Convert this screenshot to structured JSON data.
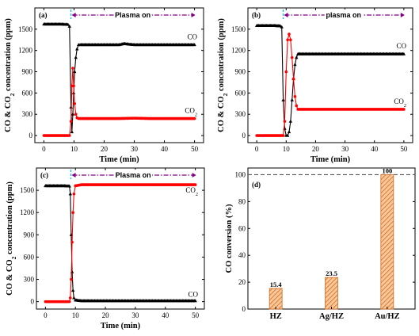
{
  "colors": {
    "co": "#000000",
    "co2": "#ff0000",
    "plasma_arrow": "#800080",
    "marker_line": "#00bfff",
    "bar_fill": "#f4a460",
    "bar_hatch": "#d2691e",
    "ref_line": "#555555"
  },
  "chart_data": [
    {
      "type": "line",
      "panel_label": "(a)",
      "plasma_text": "Plasma on",
      "xlabel": "Time (min)",
      "ylabel": "CO & CO2 concentration (ppm)",
      "ylabel_parts": {
        "main": "CO & CO",
        "sub": "2",
        "rest": " concentration (ppm)"
      },
      "xlim": [
        -3,
        53
      ],
      "ylim": [
        -100,
        1800
      ],
      "xticks": [
        "0",
        "10",
        "20",
        "30",
        "40",
        "50"
      ],
      "yticks": [
        "0",
        "300",
        "600",
        "900",
        "1200",
        "1500"
      ],
      "plasma_on_time": 9,
      "series": [
        {
          "name": "CO",
          "color": "#000000",
          "marker": "triangle",
          "points": [
            [
              0,
              1570
            ],
            [
              3,
              1570
            ],
            [
              6,
              1570
            ],
            [
              8,
              1565
            ],
            [
              8.5,
              1540
            ],
            [
              9,
              400
            ],
            [
              9.3,
              50
            ],
            [
              9.6,
              300
            ],
            [
              9.9,
              600
            ],
            [
              10.2,
              900
            ],
            [
              10.6,
              1100
            ],
            [
              11,
              1220
            ],
            [
              11.5,
              1280
            ],
            [
              12,
              1280
            ],
            [
              15,
              1280
            ],
            [
              20,
              1280
            ],
            [
              25,
              1280
            ],
            [
              26.5,
              1295
            ],
            [
              30,
              1280
            ],
            [
              35,
              1280
            ],
            [
              40,
              1280
            ],
            [
              45,
              1280
            ],
            [
              50,
              1280
            ]
          ]
        },
        {
          "name": "CO2",
          "label_main": "CO",
          "label_sub": "2",
          "color": "#ff0000",
          "marker": "circle",
          "points": [
            [
              0,
              0
            ],
            [
              3,
              0
            ],
            [
              6,
              0
            ],
            [
              8,
              0
            ],
            [
              8.5,
              0
            ],
            [
              9,
              200
            ],
            [
              9.3,
              700
            ],
            [
              9.6,
              950
            ],
            [
              9.9,
              700
            ],
            [
              10.2,
              450
            ],
            [
              10.6,
              300
            ],
            [
              11,
              250
            ],
            [
              11.5,
              240
            ],
            [
              12,
              240
            ],
            [
              15,
              240
            ],
            [
              20,
              240
            ],
            [
              25,
              240
            ],
            [
              30,
              245
            ],
            [
              35,
              240
            ],
            [
              40,
              240
            ],
            [
              45,
              240
            ],
            [
              50,
              240
            ]
          ]
        }
      ]
    },
    {
      "type": "line",
      "panel_label": "(b)",
      "plasma_text": "plasma on",
      "xlabel": "Time (min)",
      "ylabel": "CO & CO2 concentration (ppm)",
      "ylabel_parts": {
        "main": "CO & CO",
        "sub": "2",
        "rest": " concentration (ppm)"
      },
      "xlim": [
        -3,
        53
      ],
      "ylim": [
        -100,
        1800
      ],
      "xticks": [
        "0",
        "10",
        "20",
        "30",
        "40",
        "50"
      ],
      "yticks": [
        "0",
        "300",
        "600",
        "900",
        "1200",
        "1500"
      ],
      "plasma_on_time": 9,
      "series": [
        {
          "name": "CO",
          "color": "#000000",
          "marker": "triangle",
          "points": [
            [
              0,
              1550
            ],
            [
              3,
              1550
            ],
            [
              6,
              1550
            ],
            [
              8,
              1545
            ],
            [
              8.5,
              1530
            ],
            [
              9,
              500
            ],
            [
              9.5,
              100
            ],
            [
              10,
              0
            ],
            [
              10.5,
              0
            ],
            [
              11,
              50
            ],
            [
              11.5,
              200
            ],
            [
              12,
              500
            ],
            [
              12.5,
              800
            ],
            [
              13,
              1000
            ],
            [
              13.5,
              1100
            ],
            [
              14,
              1150
            ],
            [
              15,
              1150
            ],
            [
              20,
              1150
            ],
            [
              25,
              1150
            ],
            [
              30,
              1150
            ],
            [
              35,
              1150
            ],
            [
              40,
              1150
            ],
            [
              45,
              1150
            ],
            [
              50,
              1150
            ]
          ]
        },
        {
          "name": "CO2",
          "label_main": "CO",
          "label_sub": "2",
          "color": "#ff0000",
          "marker": "circle",
          "points": [
            [
              0,
              0
            ],
            [
              3,
              0
            ],
            [
              6,
              0
            ],
            [
              8,
              0
            ],
            [
              9,
              0
            ],
            [
              9.5,
              200
            ],
            [
              10,
              900
            ],
            [
              10.5,
              1350
            ],
            [
              11,
              1430
            ],
            [
              11.5,
              1350
            ],
            [
              12,
              1100
            ],
            [
              12.5,
              800
            ],
            [
              13,
              550
            ],
            [
              13.5,
              420
            ],
            [
              14,
              370
            ],
            [
              15,
              370
            ],
            [
              20,
              370
            ],
            [
              25,
              370
            ],
            [
              30,
              370
            ],
            [
              35,
              370
            ],
            [
              40,
              370
            ],
            [
              45,
              370
            ],
            [
              50,
              370
            ]
          ]
        }
      ]
    },
    {
      "type": "line",
      "panel_label": "(c)",
      "plasma_text": "Plasma on",
      "xlabel": "Time (min)",
      "ylabel": "CO & CO2 concentration (ppm)",
      "ylabel_parts": {
        "main": "CO & CO",
        "sub": "2",
        "rest": " concentration (ppm)"
      },
      "xlim": [
        -3,
        53
      ],
      "ylim": [
        -100,
        1800
      ],
      "xticks": [
        "0",
        "10",
        "20",
        "30",
        "40",
        "50"
      ],
      "yticks": [
        "0",
        "300",
        "600",
        "900",
        "1200",
        "1500"
      ],
      "plasma_on_time": 8.5,
      "series": [
        {
          "name": "CO",
          "color": "#000000",
          "marker": "triangle",
          "points": [
            [
              0,
              1560
            ],
            [
              3,
              1560
            ],
            [
              6,
              1560
            ],
            [
              8,
              1555
            ],
            [
              8.3,
              1450
            ],
            [
              8.6,
              900
            ],
            [
              8.9,
              400
            ],
            [
              9.2,
              150
            ],
            [
              9.5,
              50
            ],
            [
              10,
              20
            ],
            [
              12,
              10
            ],
            [
              15,
              10
            ],
            [
              20,
              10
            ],
            [
              25,
              10
            ],
            [
              30,
              10
            ],
            [
              35,
              10
            ],
            [
              40,
              10
            ],
            [
              45,
              10
            ],
            [
              50,
              10
            ]
          ]
        },
        {
          "name": "CO2",
          "label_main": "CO",
          "label_sub": "2",
          "color": "#ff0000",
          "marker": "circle",
          "points": [
            [
              0,
              0
            ],
            [
              3,
              0
            ],
            [
              6,
              0
            ],
            [
              8,
              0
            ],
            [
              8.3,
              50
            ],
            [
              8.6,
              300
            ],
            [
              8.9,
              800
            ],
            [
              9.2,
              1200
            ],
            [
              9.5,
              1450
            ],
            [
              10,
              1560
            ],
            [
              12,
              1575
            ],
            [
              15,
              1575
            ],
            [
              20,
              1575
            ],
            [
              25,
              1575
            ],
            [
              30,
              1575
            ],
            [
              35,
              1575
            ],
            [
              40,
              1575
            ],
            [
              45,
              1575
            ],
            [
              50,
              1575
            ]
          ]
        }
      ]
    },
    {
      "type": "bar",
      "panel_label": "(d)",
      "ylabel": "CO conversion (%)",
      "ylim": [
        0,
        105
      ],
      "yticks": [
        "0",
        "20",
        "40",
        "60",
        "80",
        "100"
      ],
      "categories": [
        "HZ",
        "Ag/HZ",
        "Au/HZ"
      ],
      "values": [
        15.4,
        23.5,
        100
      ],
      "value_labels": [
        "15.4",
        "23.5",
        "100"
      ],
      "reference_line": 100
    }
  ]
}
